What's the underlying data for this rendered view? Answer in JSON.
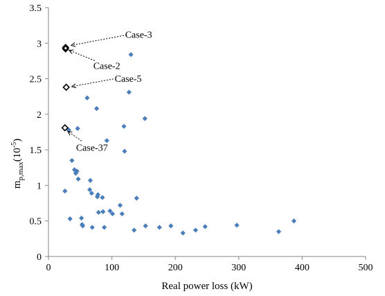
{
  "chart_data": {
    "type": "scatter",
    "xlabel": "Real power loss (kW)",
    "ylabel": {
      "main": "m",
      "sub": "p,max",
      "unit_pre": "(10",
      "unit_sup": "-5",
      "unit_post": ")"
    },
    "xlim": [
      0,
      500
    ],
    "ylim": [
      0,
      3.5
    ],
    "x_ticks": [
      0,
      100,
      200,
      300,
      400,
      500
    ],
    "y_ticks": [
      0,
      0.5,
      1,
      1.5,
      2,
      2.5,
      3,
      3.5
    ],
    "y_tick_labels": [
      "0",
      "0.5",
      "1",
      "1.5",
      "2",
      "2.5",
      "3",
      "3.5"
    ],
    "grid": false,
    "marker_colors": {
      "series": "#4a7ebb",
      "highlight": "#000000"
    },
    "series": [
      {
        "marker": "diamond-filled",
        "points": [
          [
            26,
            0.92
          ],
          [
            32,
            1.78
          ],
          [
            34,
            0.53
          ],
          [
            37,
            1.35
          ],
          [
            41,
            1.22
          ],
          [
            43,
            1.17
          ],
          [
            45,
            1.2
          ],
          [
            46,
            1.8
          ],
          [
            47,
            1.09
          ],
          [
            52,
            0.54
          ],
          [
            53,
            0.45
          ],
          [
            54,
            0.43
          ],
          [
            61,
            2.23
          ],
          [
            65,
            0.94
          ],
          [
            66,
            1.07
          ],
          [
            68,
            0.89
          ],
          [
            69,
            0.41
          ],
          [
            76,
            2.08
          ],
          [
            77,
            0.84
          ],
          [
            78,
            0.87
          ],
          [
            79,
            0.62
          ],
          [
            85,
            0.83
          ],
          [
            86,
            0.63
          ],
          [
            88,
            0.41
          ],
          [
            92,
            1.63
          ],
          [
            97,
            0.64
          ],
          [
            101,
            0.6
          ],
          [
            113,
            0.72
          ],
          [
            116,
            0.6
          ],
          [
            119,
            1.83
          ],
          [
            120,
            1.48
          ],
          [
            127,
            2.31
          ],
          [
            130,
            2.84
          ],
          [
            135,
            0.37
          ],
          [
            139,
            0.82
          ],
          [
            152,
            1.94
          ],
          [
            153,
            0.43
          ],
          [
            175,
            0.41
          ],
          [
            193,
            0.43
          ],
          [
            212,
            0.33
          ],
          [
            232,
            0.37
          ],
          [
            247,
            0.42
          ],
          [
            297,
            0.44
          ],
          [
            363,
            0.35
          ],
          [
            387,
            0.5
          ]
        ]
      },
      {
        "marker": "diamond-open",
        "points": [
          {
            "x": 27,
            "y": 2.94,
            "label": "Case-3"
          },
          {
            "x": 27,
            "y": 2.92,
            "label": "Case-2"
          },
          {
            "x": 28,
            "y": 2.38,
            "label": "Case-5"
          },
          {
            "x": 26,
            "y": 1.81,
            "label": "Case-37"
          }
        ]
      }
    ]
  }
}
